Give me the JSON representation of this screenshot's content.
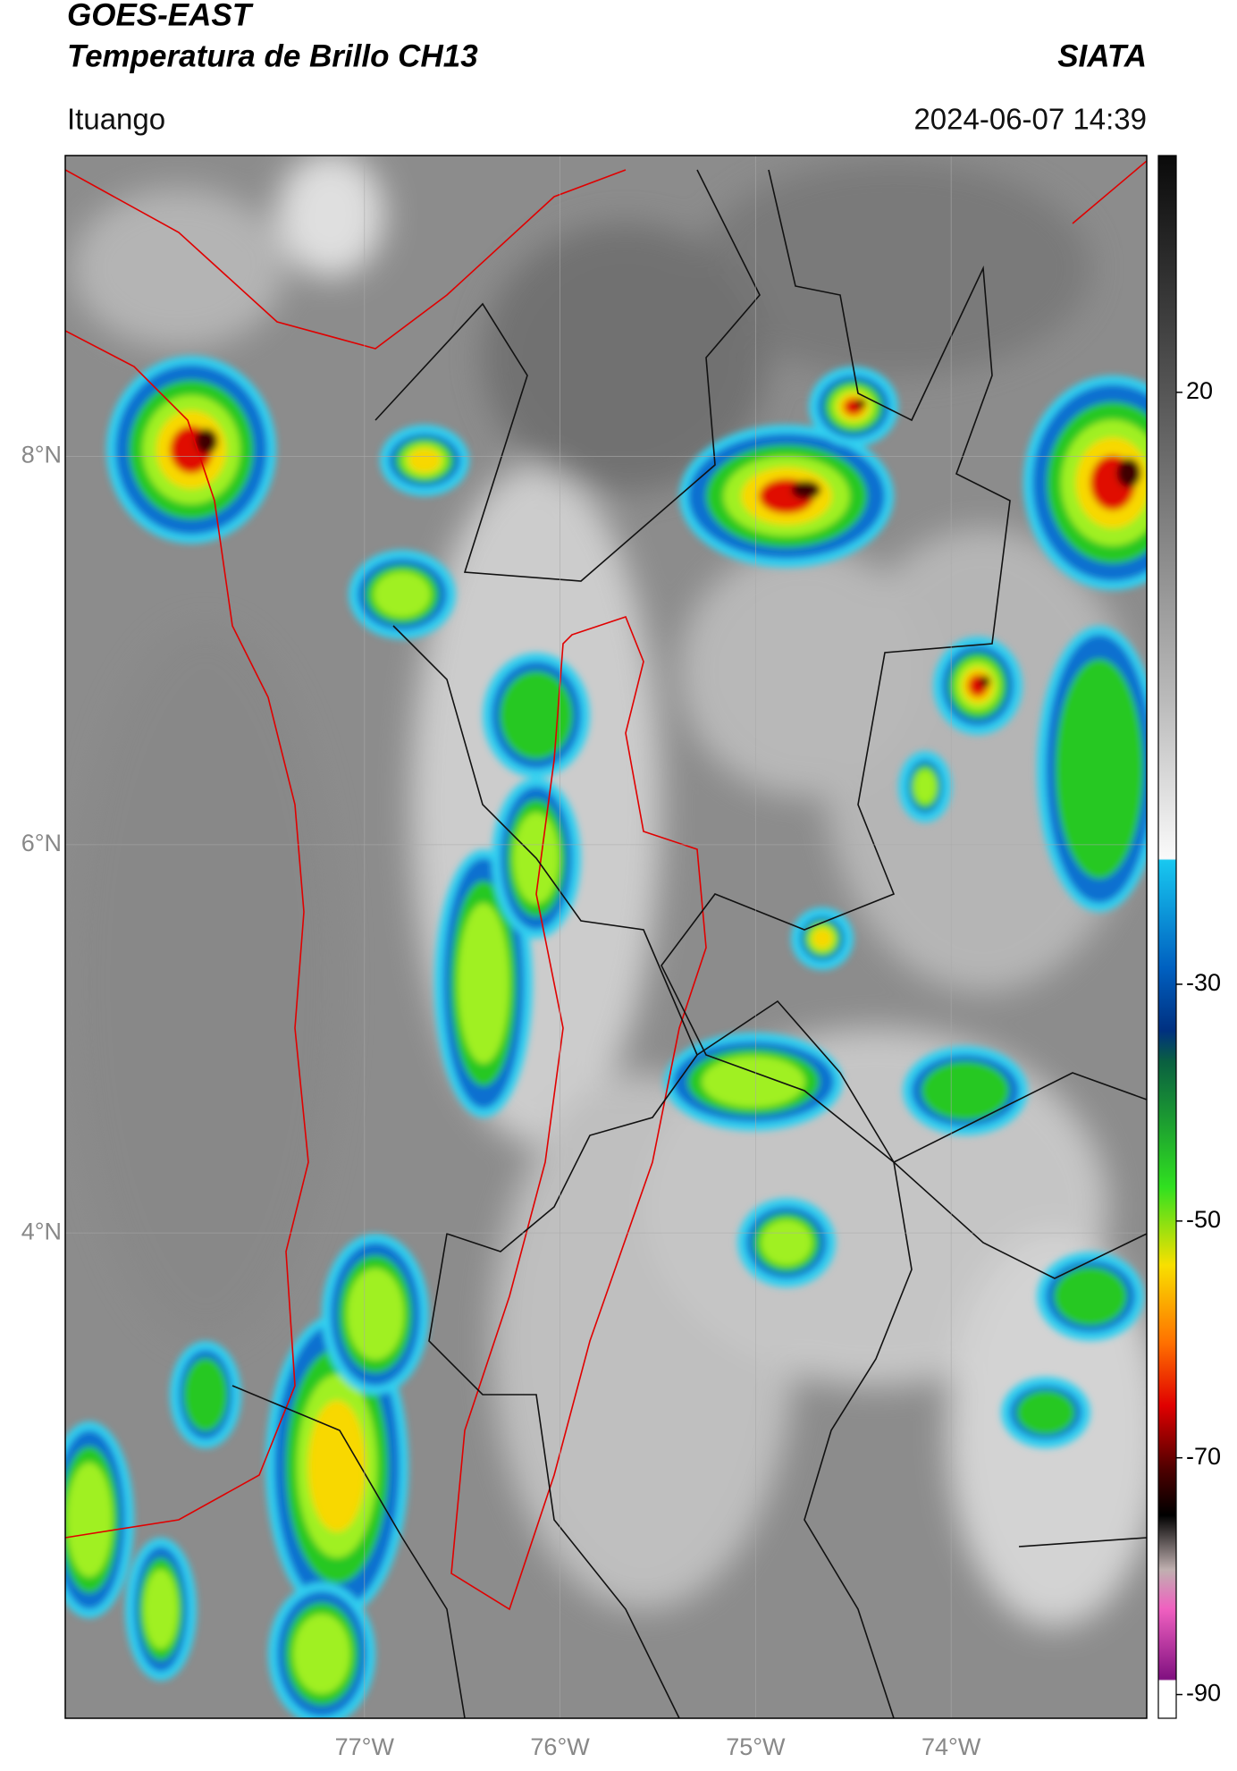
{
  "header": {
    "title": "GOES-EAST",
    "subtitle": "Temperatura de Brillo CH13",
    "source": "SIATA",
    "location": "Ituango",
    "datetime": "2024-06-07 14:39"
  },
  "map": {
    "xlim": [
      -78.53,
      -73.0
    ],
    "ylim": [
      1.5,
      9.55
    ],
    "grid": true,
    "xticks": [
      {
        "value": -77,
        "label": "77°W"
      },
      {
        "value": -76,
        "label": "76°W"
      },
      {
        "value": -75,
        "label": "75°W"
      },
      {
        "value": -74,
        "label": "74°W"
      }
    ],
    "yticks": [
      {
        "value": 8,
        "label": "8°N"
      },
      {
        "value": 6,
        "label": "6°N"
      },
      {
        "value": 4,
        "label": "4°N"
      }
    ]
  },
  "colorbar": {
    "range": [
      -92,
      40
    ],
    "ticks": [
      20,
      -30,
      -50,
      -70,
      -90
    ]
  }
}
